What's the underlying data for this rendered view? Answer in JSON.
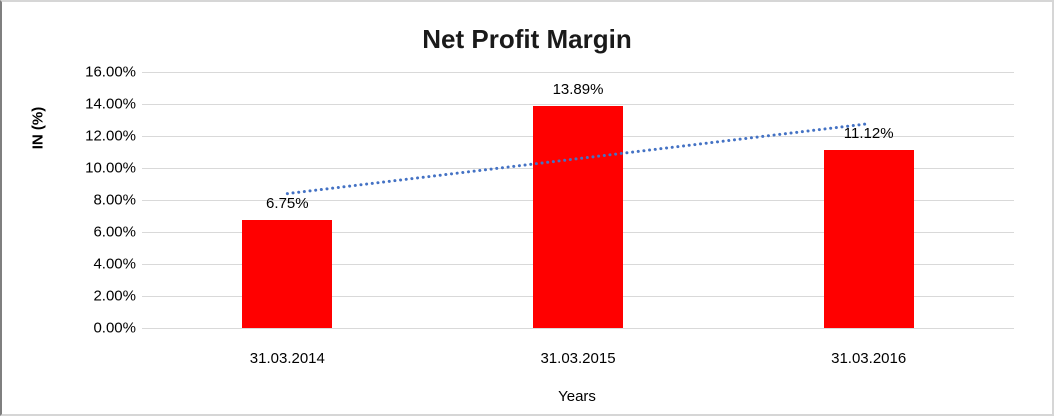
{
  "window": {
    "background": "#ffffff",
    "border_light_color": "#d6d6d6",
    "border_dark_color": "#7f7f7f"
  },
  "chart_data": {
    "type": "bar",
    "title": "Net Profit Margin",
    "categories": [
      "31.03.2014",
      "31.03.2015",
      "31.03.2016"
    ],
    "values": [
      6.75,
      13.89,
      11.12
    ],
    "data_labels": [
      "6.75%",
      "13.89%",
      "11.12%"
    ],
    "xlabel": "Years",
    "ylabel": "IN (%)",
    "ylim": [
      0,
      16
    ],
    "ytick_step": 2,
    "ytick_labels": [
      "0.00%",
      "2.00%",
      "4.00%",
      "6.00%",
      "8.00%",
      "10.00%",
      "12.00%",
      "14.00%",
      "16.00%"
    ],
    "grid": true,
    "legend": "none",
    "bar_color": "#ff0000",
    "gridline_color": "#d9d9d9",
    "text_color": "#000000",
    "trendline": {
      "type": "linear",
      "style": "dotted",
      "color": "#4472c4",
      "start_value": 8.4,
      "end_value": 12.77
    }
  }
}
